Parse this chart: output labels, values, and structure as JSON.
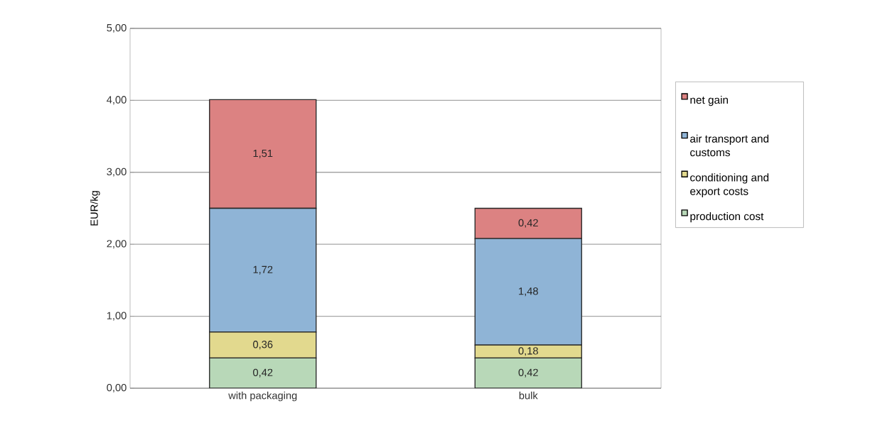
{
  "chart_data": {
    "type": "bar",
    "stacked": true,
    "categories": [
      "with packaging",
      "bulk"
    ],
    "ylabel": "EUR/kg",
    "ylim": [
      0,
      5
    ],
    "yticks": [
      {
        "value": 0,
        "label": "0,00"
      },
      {
        "value": 1,
        "label": "1,00"
      },
      {
        "value": 2,
        "label": "2,00"
      },
      {
        "value": 3,
        "label": "3,00"
      },
      {
        "value": 4,
        "label": "4,00"
      },
      {
        "value": 5,
        "label": "5,00"
      }
    ],
    "grid": "y",
    "legend": "right",
    "series": [
      {
        "name": "production cost",
        "color": "#b8d8b8",
        "values": [
          0.42,
          0.42
        ],
        "value_labels": [
          "0,42",
          "0,42"
        ]
      },
      {
        "name": "conditioning and export costs",
        "color": "#e2d98e",
        "values": [
          0.36,
          0.18
        ],
        "value_labels": [
          "0,36",
          "0,18"
        ]
      },
      {
        "name": "air transport and customs",
        "color": "#8fb4d6",
        "values": [
          1.72,
          1.48
        ],
        "value_labels": [
          "1,72",
          "1,48"
        ]
      },
      {
        "name": "net gain",
        "color": "#dc8282",
        "values": [
          1.51,
          0.42
        ],
        "value_labels": [
          "1,51",
          "0,42"
        ]
      }
    ]
  }
}
